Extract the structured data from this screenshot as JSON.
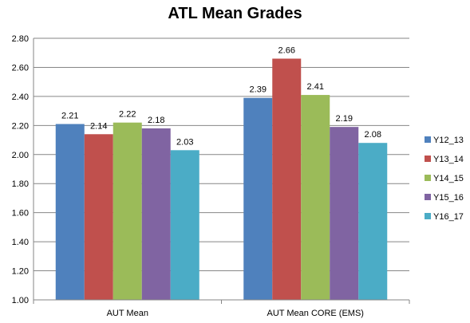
{
  "chart_data": {
    "type": "bar",
    "title": "ATL Mean Grades",
    "categories": [
      "AUT Mean",
      "AUT Mean CORE (EMS)"
    ],
    "series": [
      {
        "name": "Y12_13",
        "values": [
          2.21,
          2.39
        ],
        "color": "#4F81BD"
      },
      {
        "name": "Y13_14",
        "values": [
          2.14,
          2.66
        ],
        "color": "#C0504D"
      },
      {
        "name": "Y14_15",
        "values": [
          2.22,
          2.41
        ],
        "color": "#9BBB59"
      },
      {
        "name": "Y15_16",
        "values": [
          2.18,
          2.19
        ],
        "color": "#8064A2"
      },
      {
        "name": "Y16_17",
        "values": [
          2.03,
          2.08
        ],
        "color": "#4BACC6"
      }
    ],
    "ylim": [
      1.0,
      2.8
    ],
    "yticks": [
      "1.00",
      "1.20",
      "1.40",
      "1.60",
      "1.80",
      "2.00",
      "2.20",
      "2.40",
      "2.60",
      "2.80"
    ],
    "grid": true,
    "legend": "right",
    "data_labels": true
  }
}
